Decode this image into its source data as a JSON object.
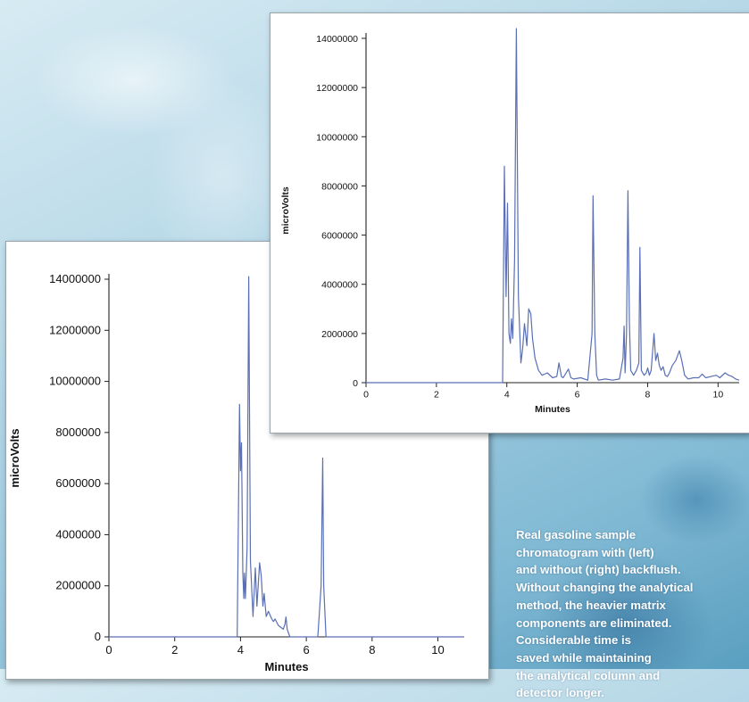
{
  "chart_data": [
    {
      "type": "line",
      "title": "",
      "xlabel": "Minutes",
      "ylabel": "microVolts",
      "xlim": [
        0,
        10.8
      ],
      "ylim": [
        0,
        14000000
      ],
      "xticks": [
        "0",
        "2",
        "4",
        "6",
        "8",
        "10"
      ],
      "yticks": [
        "0",
        "2000000",
        "4000000",
        "6000000",
        "8000000",
        "10000000",
        "12000000",
        "14000000"
      ],
      "line_color": "#5a6fb4",
      "series": [
        {
          "x": [
            0,
            3.9,
            3.97,
            4.0,
            4.03,
            4.07,
            4.1,
            4.12,
            4.15,
            4.2,
            4.25,
            4.3,
            4.38,
            4.45,
            4.5,
            4.58,
            4.63,
            4.68,
            4.72,
            4.78,
            4.85,
            4.95,
            5.0,
            5.05,
            5.15,
            5.3,
            5.35,
            5.38,
            5.42,
            5.5,
            6.35,
            6.45,
            6.5,
            6.53,
            6.6,
            10.8
          ],
          "y": [
            0,
            0,
            9100000,
            6500000,
            7600000,
            2500000,
            1500000,
            2500000,
            1500000,
            3500000,
            14100000,
            3000000,
            800000,
            2700000,
            1200000,
            2900000,
            2400000,
            1200000,
            1700000,
            800000,
            1000000,
            700000,
            600000,
            700000,
            450000,
            300000,
            500000,
            780000,
            300000,
            0,
            0,
            2000000,
            7000000,
            2000000,
            0,
            0
          ]
        }
      ]
    },
    {
      "type": "line",
      "title": "",
      "xlabel": "Minutes",
      "ylabel": "microVolts",
      "xlim": [
        0,
        10.6
      ],
      "ylim": [
        0,
        14000000
      ],
      "xticks": [
        "0",
        "2",
        "4",
        "6",
        "8",
        "10"
      ],
      "yticks": [
        "0",
        "2000000",
        "4000000",
        "6000000",
        "8000000",
        "10000000",
        "12000000",
        "14000000"
      ],
      "line_color": "#5a6fb4",
      "series": [
        {
          "x": [
            0,
            3.88,
            3.93,
            3.98,
            4.02,
            4.06,
            4.1,
            4.13,
            4.17,
            4.22,
            4.27,
            4.33,
            4.4,
            4.45,
            4.5,
            4.57,
            4.62,
            4.68,
            4.73,
            4.8,
            4.9,
            5.0,
            5.15,
            5.3,
            5.42,
            5.48,
            5.55,
            5.6,
            5.75,
            5.82,
            5.9,
            6.1,
            6.3,
            6.42,
            6.45,
            6.5,
            6.55,
            6.6,
            6.8,
            7.0,
            7.2,
            7.3,
            7.33,
            7.36,
            7.4,
            7.44,
            7.48,
            7.52,
            7.6,
            7.68,
            7.75,
            7.78,
            7.82,
            7.9,
            7.96,
            8.0,
            8.05,
            8.1,
            8.18,
            8.23,
            8.28,
            8.33,
            8.38,
            8.44,
            8.5,
            8.56,
            8.62,
            8.7,
            8.8,
            8.9,
            8.97,
            9.05,
            9.15,
            9.3,
            9.45,
            9.55,
            9.65,
            9.8,
            9.95,
            10.05,
            10.2,
            10.3,
            10.4,
            10.5,
            10.6
          ],
          "y": [
            0,
            0,
            8800000,
            3500000,
            7300000,
            2000000,
            1600000,
            2600000,
            1800000,
            5000000,
            14400000,
            3500000,
            800000,
            1400000,
            2400000,
            1500000,
            3000000,
            2800000,
            1800000,
            1000000,
            500000,
            300000,
            400000,
            200000,
            250000,
            800000,
            250000,
            200000,
            550000,
            200000,
            150000,
            200000,
            100000,
            2000000,
            7600000,
            2000000,
            300000,
            100000,
            150000,
            100000,
            150000,
            1000000,
            2300000,
            400000,
            2000000,
            7800000,
            2500000,
            500000,
            300000,
            500000,
            800000,
            5500000,
            500000,
            300000,
            400000,
            600000,
            300000,
            500000,
            2000000,
            900000,
            1200000,
            700000,
            500000,
            650000,
            300000,
            250000,
            400000,
            700000,
            900000,
            1300000,
            900000,
            300000,
            150000,
            200000,
            200000,
            350000,
            200000,
            250000,
            300000,
            200000,
            400000,
            300000,
            250000,
            150000,
            100000
          ]
        }
      ]
    }
  ],
  "caption": "Real gasoline sample\nchromatogram with (left)\nand without (right) backflush.\nWithout changing the analytical\nmethod, the heavier matrix\ncomponents are eliminated.\nConsiderable time is\nsaved while maintaining\nthe analytical column and\ndetector longer."
}
